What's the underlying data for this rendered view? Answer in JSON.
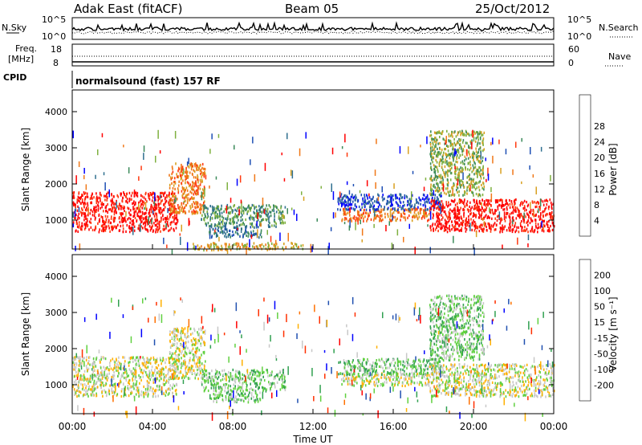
{
  "header": {
    "title": "Adak East (fitACF)",
    "beam": "Beam 05",
    "date": "25/Oct/2012"
  },
  "top_panels": {
    "nsky": {
      "label": "N.Sky",
      "tick_hi": "10^5",
      "tick_lo": "10^0"
    },
    "nsearch": {
      "label": "N.Search",
      "tick_hi": "10^5",
      "tick_lo": "10^0"
    },
    "freq": {
      "label1": "Freq.",
      "label2": "[MHz]",
      "tick_hi": "18",
      "tick_lo": "8"
    },
    "nave": {
      "label": "Nave",
      "tick_hi": "60",
      "tick_lo": "0"
    },
    "cpid": {
      "label": "CPID",
      "text": "normalsound (fast) 157 RF"
    }
  },
  "chart_data": [
    {
      "type": "heatmap",
      "title": "",
      "xlabel": "",
      "ylabel": "Slant Range [km]",
      "x_ticks": [
        "00:00",
        "04:00",
        "08:00",
        "12:00",
        "16:00",
        "20:00",
        "00:00"
      ],
      "x_range_hours": [
        0,
        24
      ],
      "y_ticks": [
        1000,
        2000,
        3000,
        4000
      ],
      "ylim": [
        200,
        4600
      ],
      "colorbar": {
        "label": "Power [dB]",
        "ticks": [
          "4",
          "8",
          "12",
          "16",
          "20",
          "24",
          "28"
        ],
        "colors": [
          "#0000ff",
          "#1e4fb4",
          "#2f6f8f",
          "#3b8a5a",
          "#7fb040",
          "#d8a020",
          "#f07818",
          "#ff3a10",
          "#ff0000"
        ]
      },
      "regions": [
        {
          "t0": 0.0,
          "t1": 5.2,
          "r0": 700,
          "r1": 1800,
          "level": 8
        },
        {
          "t0": 4.8,
          "t1": 6.6,
          "r0": 1200,
          "r1": 2600,
          "level": 6
        },
        {
          "t0": 6.4,
          "t1": 10.6,
          "r0": 850,
          "r1": 1450,
          "level": 3
        },
        {
          "t0": 6.8,
          "t1": 9.4,
          "r0": 550,
          "r1": 850,
          "level": 2
        },
        {
          "t0": 13.4,
          "t1": 17.8,
          "r0": 1000,
          "r1": 1350,
          "level": 6
        },
        {
          "t0": 13.2,
          "t1": 18.4,
          "r0": 1300,
          "r1": 1750,
          "level": 1
        },
        {
          "t0": 17.8,
          "t1": 24.0,
          "r0": 700,
          "r1": 1600,
          "level": 8
        },
        {
          "t0": 17.8,
          "t1": 20.5,
          "r0": 1700,
          "r1": 3500,
          "level": 4
        },
        {
          "t0": 6.0,
          "t1": 11.5,
          "r0": 200,
          "r1": 400,
          "level": 5
        }
      ]
    },
    {
      "type": "heatmap",
      "title": "",
      "xlabel": "Time UT",
      "ylabel": "Slant Range [km]",
      "x_ticks": [
        "00:00",
        "04:00",
        "08:00",
        "12:00",
        "16:00",
        "20:00",
        "00:00"
      ],
      "x_range_hours": [
        0,
        24
      ],
      "y_ticks": [
        1000,
        2000,
        3000,
        4000
      ],
      "ylim": [
        200,
        4600
      ],
      "colorbar": {
        "label": "Velocity [m s⁻¹]",
        "ticks": [
          "200",
          "100",
          "50",
          "15",
          "-15",
          "-50",
          "-100",
          "-200"
        ],
        "colors": [
          "#0000ff",
          "#2050b0",
          "#30a050",
          "#60d040",
          "#c8c8c8",
          "#ffb000",
          "#ff7000",
          "#ff3000",
          "#ff0000"
        ]
      },
      "regions": [
        {
          "t0": 0.0,
          "t1": 5.2,
          "r0": 700,
          "r1": 1800,
          "level": 4
        },
        {
          "t0": 4.8,
          "t1": 6.6,
          "r0": 1200,
          "r1": 2600,
          "level": 4
        },
        {
          "t0": 6.4,
          "t1": 10.6,
          "r0": 850,
          "r1": 1450,
          "level": 3
        },
        {
          "t0": 6.8,
          "t1": 9.4,
          "r0": 550,
          "r1": 850,
          "level": 3
        },
        {
          "t0": 13.4,
          "t1": 17.8,
          "r0": 1000,
          "r1": 1350,
          "level": 4
        },
        {
          "t0": 13.2,
          "t1": 18.4,
          "r0": 1300,
          "r1": 1750,
          "level": 3
        },
        {
          "t0": 17.8,
          "t1": 24.0,
          "r0": 700,
          "r1": 1600,
          "level": 4
        },
        {
          "t0": 17.8,
          "t1": 20.5,
          "r0": 1700,
          "r1": 3500,
          "level": 3
        }
      ]
    }
  ]
}
